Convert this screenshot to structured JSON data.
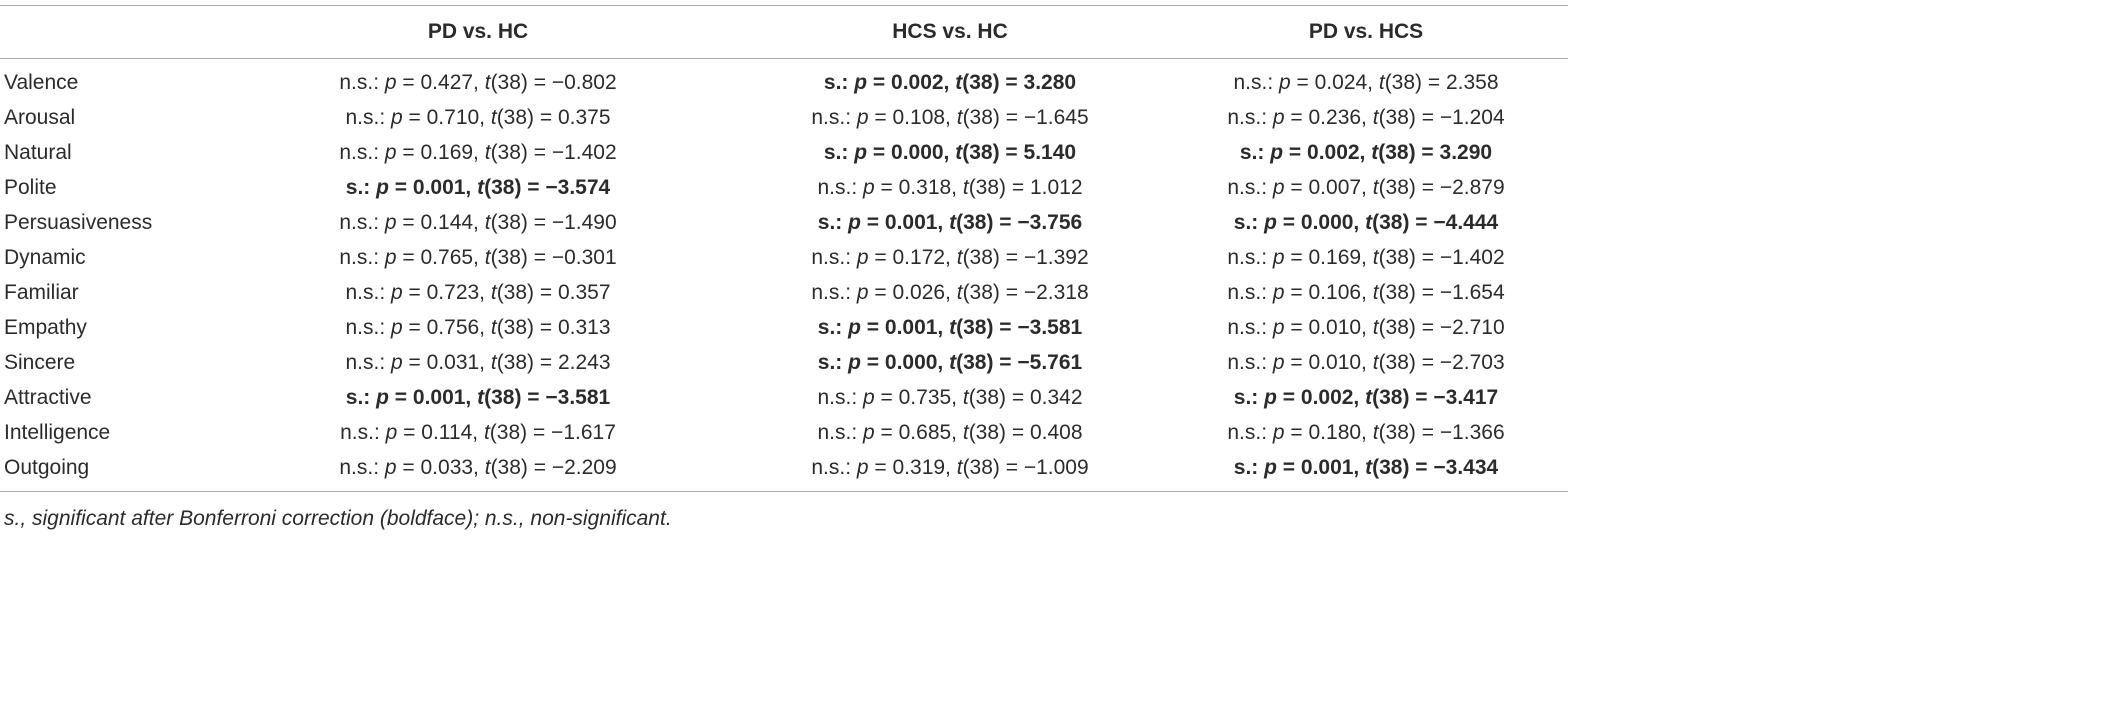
{
  "table": {
    "columns": [
      "PD vs. HC",
      "HCS vs. HC",
      "PD vs. HCS"
    ],
    "rows": [
      {
        "label": "Valence",
        "cells": [
          {
            "text": "n.s.: p = 0.427, t(38) = −0.802",
            "bold": false
          },
          {
            "text": "s.: p = 0.002, t(38) = 3.280",
            "bold": true
          },
          {
            "text": "n.s.: p = 0.024, t(38) = 2.358",
            "bold": false
          }
        ]
      },
      {
        "label": "Arousal",
        "cells": [
          {
            "text": "n.s.: p = 0.710, t(38) = 0.375",
            "bold": false
          },
          {
            "text": "n.s.: p = 0.108, t(38) = −1.645",
            "bold": false
          },
          {
            "text": "n.s.: p = 0.236, t(38) = −1.204",
            "bold": false
          }
        ]
      },
      {
        "label": "Natural",
        "cells": [
          {
            "text": "n.s.: p = 0.169, t(38) = −1.402",
            "bold": false
          },
          {
            "text": "s.: p = 0.000, t(38) = 5.140",
            "bold": true
          },
          {
            "text": "s.: p = 0.002, t(38) = 3.290",
            "bold": true
          }
        ]
      },
      {
        "label": "Polite",
        "cells": [
          {
            "text": "s.: p = 0.001, t(38) = −3.574",
            "bold": true
          },
          {
            "text": "n.s.: p = 0.318, t(38) = 1.012",
            "bold": false
          },
          {
            "text": "n.s.: p = 0.007, t(38) = −2.879",
            "bold": false
          }
        ]
      },
      {
        "label": "Persuasiveness",
        "cells": [
          {
            "text": "n.s.: p = 0.144, t(38) = −1.490",
            "bold": false
          },
          {
            "text": "s.: p = 0.001, t(38) = −3.756",
            "bold": true
          },
          {
            "text": "s.: p = 0.000, t(38) = −4.444",
            "bold": true
          }
        ]
      },
      {
        "label": "Dynamic",
        "cells": [
          {
            "text": "n.s.: p = 0.765, t(38) = −0.301",
            "bold": false
          },
          {
            "text": "n.s.: p = 0.172, t(38) = −1.392",
            "bold": false
          },
          {
            "text": "n.s.: p = 0.169, t(38) = −1.402",
            "bold": false
          }
        ]
      },
      {
        "label": "Familiar",
        "cells": [
          {
            "text": "n.s.: p = 0.723, t(38) = 0.357",
            "bold": false
          },
          {
            "text": "n.s.: p = 0.026, t(38) = −2.318",
            "bold": false
          },
          {
            "text": "n.s.: p = 0.106, t(38) = −1.654",
            "bold": false
          }
        ]
      },
      {
        "label": "Empathy",
        "cells": [
          {
            "text": "n.s.: p = 0.756, t(38) = 0.313",
            "bold": false
          },
          {
            "text": "s.: p = 0.001, t(38) = −3.581",
            "bold": true
          },
          {
            "text": "n.s.: p = 0.010, t(38) = −2.710",
            "bold": false
          }
        ]
      },
      {
        "label": "Sincere",
        "cells": [
          {
            "text": "n.s.: p = 0.031, t(38) = 2.243",
            "bold": false
          },
          {
            "text": "s.: p = 0.000, t(38) = −5.761",
            "bold": true
          },
          {
            "text": "n.s.: p = 0.010, t(38) = −2.703",
            "bold": false
          }
        ]
      },
      {
        "label": "Attractive",
        "cells": [
          {
            "text": "s.: p = 0.001, t(38) = −3.581",
            "bold": true
          },
          {
            "text": "n.s.: p = 0.735, t(38) = 0.342",
            "bold": false
          },
          {
            "text": "s.: p = 0.002, t(38) = −3.417",
            "bold": true
          }
        ]
      },
      {
        "label": "Intelligence",
        "cells": [
          {
            "text": "n.s.: p = 0.114, t(38) = −1.617",
            "bold": false
          },
          {
            "text": "n.s.: p = 0.685, t(38) = 0.408",
            "bold": false
          },
          {
            "text": "n.s.: p = 0.180, t(38) = −1.366",
            "bold": false
          }
        ]
      },
      {
        "label": "Outgoing",
        "cells": [
          {
            "text": "n.s.: p = 0.033, t(38) = −2.209",
            "bold": false
          },
          {
            "text": "n.s.: p = 0.319, t(38) = −1.009",
            "bold": false
          },
          {
            "text": "s.: p = 0.001, t(38) = −3.434",
            "bold": true
          }
        ]
      }
    ],
    "footnote": "s., significant after Bonferroni correction (boldface); n.s., non-significant."
  }
}
